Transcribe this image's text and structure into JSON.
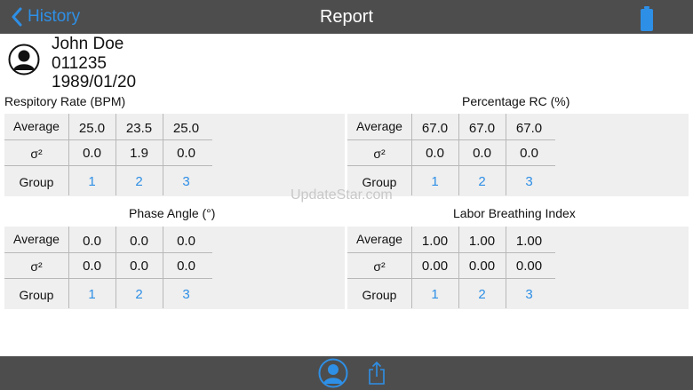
{
  "nav": {
    "back_label": "History",
    "title": "Report"
  },
  "patient": {
    "name": "John Doe",
    "id": "011235",
    "dob": "1989/01/20"
  },
  "row_labels": {
    "average": "Average",
    "variance": "σ²",
    "group": "Group"
  },
  "tables": [
    {
      "title": "Respitory Rate (BPM)",
      "average": [
        "25.0",
        "23.5",
        "25.0"
      ],
      "variance": [
        "0.0",
        "1.9",
        "0.0"
      ],
      "groups": [
        "1",
        "2",
        "3"
      ]
    },
    {
      "title": "Percentage RC (%)",
      "average": [
        "67.0",
        "67.0",
        "67.0"
      ],
      "variance": [
        "0.0",
        "0.0",
        "0.0"
      ],
      "groups": [
        "1",
        "2",
        "3"
      ]
    },
    {
      "title": "Phase Angle (°)",
      "average": [
        "0.0",
        "0.0",
        "0.0"
      ],
      "variance": [
        "0.0",
        "0.0",
        "0.0"
      ],
      "groups": [
        "1",
        "2",
        "3"
      ]
    },
    {
      "title": "Labor Breathing Index",
      "average": [
        "1.00",
        "1.00",
        "1.00"
      ],
      "variance": [
        "0.00",
        "0.00",
        "0.00"
      ],
      "groups": [
        "1",
        "2",
        "3"
      ]
    }
  ],
  "watermark": "UpdateStar.com",
  "icons": {
    "back": "chevron-left-icon",
    "battery": "battery-icon",
    "avatar": "person-icon",
    "profile": "person-icon",
    "share": "share-icon"
  },
  "colors": {
    "accent": "#2e8fe6",
    "bar": "#4d4d4d",
    "table_bg": "#efefef"
  }
}
